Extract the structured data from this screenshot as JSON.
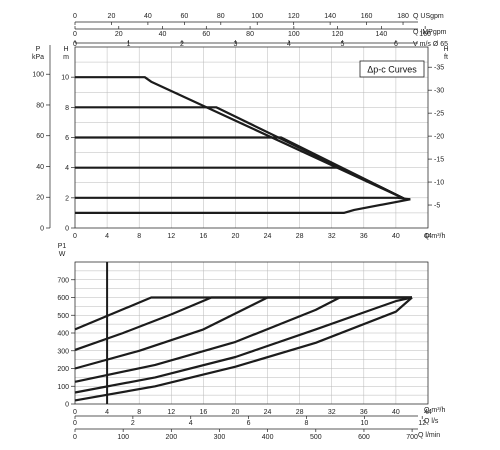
{
  "chart_data": [
    {
      "type": "line",
      "title": "Δp-c Curves",
      "x_axis": {
        "label": "Q m³/h",
        "range": [
          0,
          44
        ],
        "ticks": [
          0,
          4,
          8,
          12,
          16,
          20,
          24,
          28,
          32,
          36,
          40,
          44
        ]
      },
      "y_axis_left_m": {
        "label": "H m",
        "range": [
          0,
          12
        ],
        "ticks": [
          0,
          2,
          4,
          6,
          8,
          10
        ]
      },
      "y_axis_left_kpa": {
        "label": "P kPa",
        "range": [
          0,
          117.7
        ],
        "ticks": [
          0,
          20,
          40,
          60,
          80,
          100
        ]
      },
      "y_axis_right_ft": {
        "label": "H ft",
        "range": [
          0,
          39.4
        ],
        "ticks": [
          5,
          10,
          15,
          20,
          25,
          30,
          35
        ]
      },
      "top_axis_usgpm": {
        "label": "Q USgpm",
        "range": [
          0,
          193.7
        ],
        "ticks": [
          0,
          20,
          40,
          60,
          80,
          100,
          120,
          140,
          160,
          180
        ]
      },
      "top_axis_impgpm": {
        "label": "Q IMPgpm",
        "range": [
          0,
          161.3
        ],
        "ticks": [
          0,
          20,
          40,
          60,
          80,
          100,
          120,
          140,
          160
        ]
      },
      "top_axis_velocity": {
        "label": "V m/s Ø 65",
        "range": [
          0,
          6.6
        ],
        "ticks": [
          0,
          1,
          2,
          3,
          4,
          5,
          6
        ]
      },
      "grid": true,
      "series": [
        {
          "x": [
            0,
            8.7,
            9.5,
            41.2,
            41.8
          ],
          "y": [
            10,
            10,
            9.7,
            1.9,
            1.9
          ]
        },
        {
          "x": [
            0,
            17.6,
            41.2
          ],
          "y": [
            8,
            8,
            1.9
          ]
        },
        {
          "x": [
            0,
            25.7,
            41.2
          ],
          "y": [
            6,
            6,
            1.9
          ]
        },
        {
          "x": [
            0,
            33.2,
            41.2
          ],
          "y": [
            4,
            4,
            1.9
          ]
        },
        {
          "x": [
            0,
            40.2,
            41.8
          ],
          "y": [
            2,
            2,
            1.9
          ]
        },
        {
          "x": [
            0,
            33.5,
            34.8,
            41.8
          ],
          "y": [
            1,
            1,
            1.2,
            1.9
          ]
        }
      ]
    },
    {
      "type": "line",
      "title": "",
      "x_axis": {
        "label": "Q m³/h",
        "range": [
          0,
          44
        ],
        "ticks": [
          0,
          4,
          8,
          12,
          16,
          20,
          24,
          28,
          32,
          36,
          40,
          44
        ]
      },
      "y_axis": {
        "label": "P1 W",
        "range": [
          0,
          800
        ],
        "ticks": [
          0,
          100,
          200,
          300,
          400,
          500,
          600,
          700
        ]
      },
      "bottom_axis_ls": {
        "label": "Q l/s",
        "range": [
          0,
          12.2
        ],
        "ticks": [
          0,
          2,
          4,
          6,
          8,
          10,
          12
        ]
      },
      "bottom_axis_lmin": {
        "label": "Q l/min",
        "range": [
          0,
          733
        ],
        "ticks": [
          0,
          100,
          200,
          300,
          400,
          500,
          600,
          700
        ]
      },
      "marker_x": 4,
      "grid": true,
      "series": [
        {
          "x": [
            0,
            9.5,
            42
          ],
          "y": [
            420,
            600,
            600
          ]
        },
        {
          "x": [
            0,
            6,
            12,
            17,
            42
          ],
          "y": [
            305,
            400,
            505,
            600,
            600
          ]
        },
        {
          "x": [
            0,
            8,
            16,
            24,
            42
          ],
          "y": [
            200,
            300,
            420,
            600,
            600
          ]
        },
        {
          "x": [
            0,
            10,
            20,
            30,
            33,
            42
          ],
          "y": [
            125,
            220,
            350,
            530,
            600,
            600
          ]
        },
        {
          "x": [
            0,
            10,
            20,
            30,
            40,
            42
          ],
          "y": [
            65,
            150,
            265,
            420,
            580,
            600
          ]
        },
        {
          "x": [
            0,
            10,
            20,
            30,
            40,
            42
          ],
          "y": [
            20,
            100,
            210,
            345,
            520,
            600
          ]
        }
      ]
    }
  ]
}
